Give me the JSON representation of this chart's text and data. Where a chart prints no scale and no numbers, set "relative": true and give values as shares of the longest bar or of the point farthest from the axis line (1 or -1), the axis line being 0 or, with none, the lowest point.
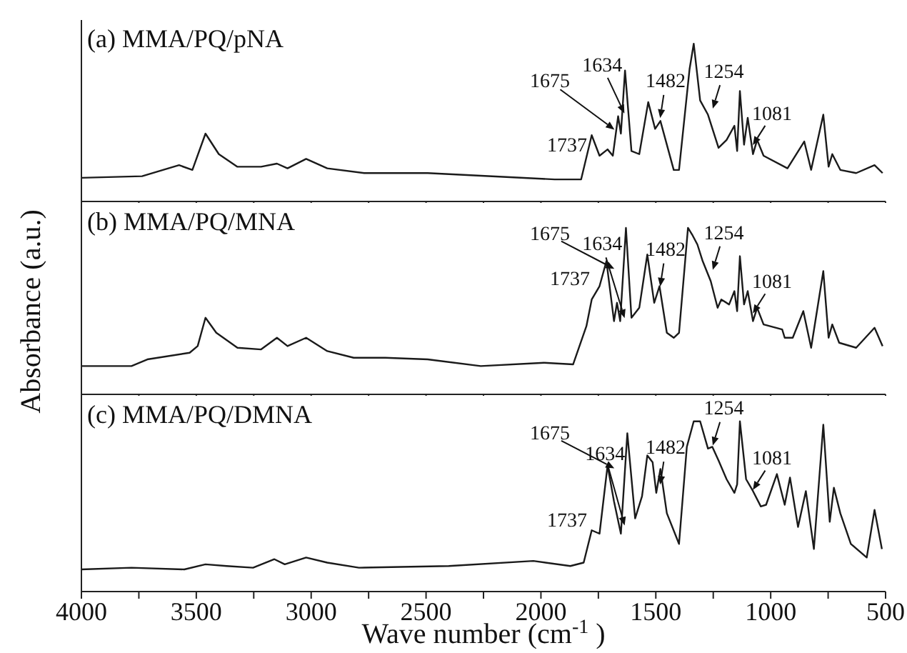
{
  "chart_data": [
    {
      "type": "line",
      "title": "(a) MMA/PQ/pNA",
      "relative": true,
      "xlim": [
        4000,
        500
      ],
      "xticks": [
        4000,
        {
          "value": 3750,
          "label": null
        },
        3500,
        {
          "value": 3250,
          "label": null
        },
        3000,
        {
          "value": 2750,
          "label": null
        },
        2500,
        {
          "value": 2250,
          "label": null
        },
        2000,
        {
          "value": 1750,
          "label": null
        },
        1500,
        {
          "value": 1250,
          "label": null
        },
        1000,
        {
          "value": 750,
          "label": null
        },
        500
      ],
      "tick_labels": false,
      "series": [
        {
          "color": "#1a1a1a",
          "x": [
            4000,
            3736,
            3575,
            3517,
            3460,
            3402,
            3321,
            3218,
            3149,
            3103,
            3022,
            2930,
            2769,
            2493,
            1940,
            1825,
            1779,
            1745,
            1710,
            1687,
            1664,
            1652,
            1634,
            1606,
            1572,
            1533,
            1503,
            1480,
            1422,
            1399,
            1353,
            1335,
            1307,
            1273,
            1227,
            1192,
            1158,
            1146,
            1134,
            1116,
            1100,
            1077,
            1059,
            1031,
            927,
            854,
            824,
            771,
            748,
            732,
            697,
            628,
            548,
            513
          ],
          "values": [
            0.15,
            0.16,
            0.23,
            0.2,
            0.43,
            0.3,
            0.22,
            0.22,
            0.24,
            0.21,
            0.27,
            0.21,
            0.18,
            0.18,
            0.14,
            0.14,
            0.42,
            0.29,
            0.33,
            0.29,
            0.54,
            0.43,
            0.83,
            0.32,
            0.3,
            0.63,
            0.46,
            0.51,
            0.2,
            0.2,
            0.84,
            1.0,
            0.64,
            0.55,
            0.34,
            0.39,
            0.48,
            0.32,
            0.7,
            0.36,
            0.53,
            0.3,
            0.39,
            0.29,
            0.21,
            0.38,
            0.2,
            0.55,
            0.22,
            0.3,
            0.2,
            0.18,
            0.23,
            0.18
          ]
        }
      ],
      "annotations": [
        {
          "text": "1737",
          "x": 1737,
          "y": 0.33
        },
        {
          "text": "1675",
          "x": 1675,
          "y": 0.45
        },
        {
          "text": "1634",
          "x": 1634,
          "y": 0.55
        },
        {
          "text": "1482",
          "x": 1482,
          "y": 0.52
        },
        {
          "text": "1254",
          "x": 1254,
          "y": 0.58
        },
        {
          "text": "1081",
          "x": 1081,
          "y": 0.35
        }
      ]
    },
    {
      "type": "line",
      "title": "(b) MMA/PQ/MNA",
      "ylabel": "Absorbance (a.u.)",
      "relative": true,
      "xlim": [
        4000,
        500
      ],
      "xticks": [
        4000,
        {
          "value": 3750,
          "label": null
        },
        3500,
        {
          "value": 3250,
          "label": null
        },
        3000,
        {
          "value": 2750,
          "label": null
        },
        2500,
        {
          "value": 2250,
          "label": null
        },
        2000,
        {
          "value": 1750,
          "label": null
        },
        1500,
        {
          "value": 1250,
          "label": null
        },
        1000,
        {
          "value": 750,
          "label": null
        },
        500
      ],
      "tick_labels": false,
      "series": [
        {
          "color": "#1a1a1a",
          "x": [
            4000,
            3782,
            3713,
            3529,
            3494,
            3460,
            3413,
            3321,
            3218,
            3149,
            3103,
            3022,
            2930,
            2815,
            2677,
            2493,
            2262,
            1986,
            1860,
            1802,
            1779,
            1745,
            1715,
            1682,
            1669,
            1655,
            1630,
            1606,
            1572,
            1537,
            1507,
            1484,
            1452,
            1422,
            1399,
            1360,
            1342,
            1319,
            1296,
            1261,
            1231,
            1215,
            1181,
            1158,
            1146,
            1134,
            1116,
            1100,
            1077,
            1059,
            1031,
            950,
            939,
            904,
            858,
            824,
            771,
            748,
            732,
            702,
            628,
            548,
            513
          ],
          "values": [
            0.17,
            0.17,
            0.21,
            0.25,
            0.29,
            0.46,
            0.37,
            0.28,
            0.27,
            0.34,
            0.29,
            0.34,
            0.26,
            0.22,
            0.22,
            0.21,
            0.17,
            0.19,
            0.18,
            0.41,
            0.57,
            0.65,
            0.8,
            0.44,
            0.55,
            0.44,
            1.0,
            0.46,
            0.52,
            0.84,
            0.55,
            0.65,
            0.37,
            0.34,
            0.37,
            1.0,
            0.96,
            0.9,
            0.8,
            0.68,
            0.52,
            0.57,
            0.54,
            0.62,
            0.5,
            0.83,
            0.54,
            0.62,
            0.44,
            0.52,
            0.42,
            0.39,
            0.34,
            0.34,
            0.5,
            0.28,
            0.74,
            0.34,
            0.42,
            0.31,
            0.28,
            0.4,
            0.29
          ]
        }
      ],
      "annotations": [
        {
          "text": "1737",
          "x": 1737,
          "y": 0.62
        },
        {
          "text": "1675",
          "x": 1675,
          "y": 0.75
        },
        {
          "text": "1634",
          "x": 1634,
          "y": 0.45
        },
        {
          "text": "1482",
          "x": 1482,
          "y": 0.64
        },
        {
          "text": "1254",
          "x": 1254,
          "y": 0.74
        },
        {
          "text": "1081",
          "x": 1081,
          "y": 0.48
        }
      ]
    },
    {
      "type": "line",
      "title": "(c) MMA/PQ/DMNA",
      "xlabel": "Wave number (cm$^{-1}$)",
      "relative": true,
      "xlim": [
        4000,
        500
      ],
      "xticks": [
        4000,
        {
          "value": 3750,
          "label": null
        },
        3500,
        {
          "value": 3250,
          "label": null
        },
        3000,
        {
          "value": 2750,
          "label": null
        },
        2500,
        {
          "value": 2250,
          "label": null
        },
        2000,
        {
          "value": 1750,
          "label": null
        },
        1500,
        {
          "value": 1250,
          "label": null
        },
        1000,
        {
          "value": 750,
          "label": null
        },
        500
      ],
      "tick_labels": "x",
      "series": [
        {
          "color": "#1a1a1a",
          "x": [
            4000,
            3782,
            3552,
            3460,
            3368,
            3253,
            3160,
            3115,
            3022,
            2930,
            2792,
            2401,
            2033,
            1872,
            1814,
            1779,
            1745,
            1710,
            1682,
            1652,
            1624,
            1590,
            1560,
            1537,
            1514,
            1498,
            1480,
            1452,
            1399,
            1365,
            1335,
            1307,
            1273,
            1254,
            1227,
            1192,
            1158,
            1146,
            1134,
            1107,
            1077,
            1043,
            1020,
            973,
            939,
            916,
            881,
            847,
            812,
            771,
            743,
            725,
            697,
            651,
            582,
            548,
            516
          ],
          "values": [
            0.13,
            0.14,
            0.13,
            0.16,
            0.15,
            0.14,
            0.19,
            0.16,
            0.2,
            0.17,
            0.14,
            0.15,
            0.18,
            0.15,
            0.17,
            0.36,
            0.34,
            0.74,
            0.53,
            0.34,
            0.93,
            0.43,
            0.56,
            0.8,
            0.76,
            0.58,
            0.72,
            0.46,
            0.28,
            0.85,
            1.0,
            1.0,
            0.84,
            0.85,
            0.77,
            0.66,
            0.58,
            0.63,
            1.0,
            0.66,
            0.59,
            0.5,
            0.51,
            0.69,
            0.51,
            0.67,
            0.38,
            0.59,
            0.25,
            0.98,
            0.41,
            0.61,
            0.46,
            0.28,
            0.2,
            0.48,
            0.25
          ]
        }
      ],
      "annotations": [
        {
          "text": "1737",
          "x": 1737,
          "y": 0.36
        },
        {
          "text": "1675",
          "x": 1675,
          "y": 0.72
        },
        {
          "text": "1634",
          "x": 1634,
          "y": 0.38
        },
        {
          "text": "1482",
          "x": 1482,
          "y": 0.62
        },
        {
          "text": "1254",
          "x": 1254,
          "y": 0.85
        },
        {
          "text": "1081",
          "x": 1081,
          "y": 0.59
        }
      ]
    }
  ]
}
